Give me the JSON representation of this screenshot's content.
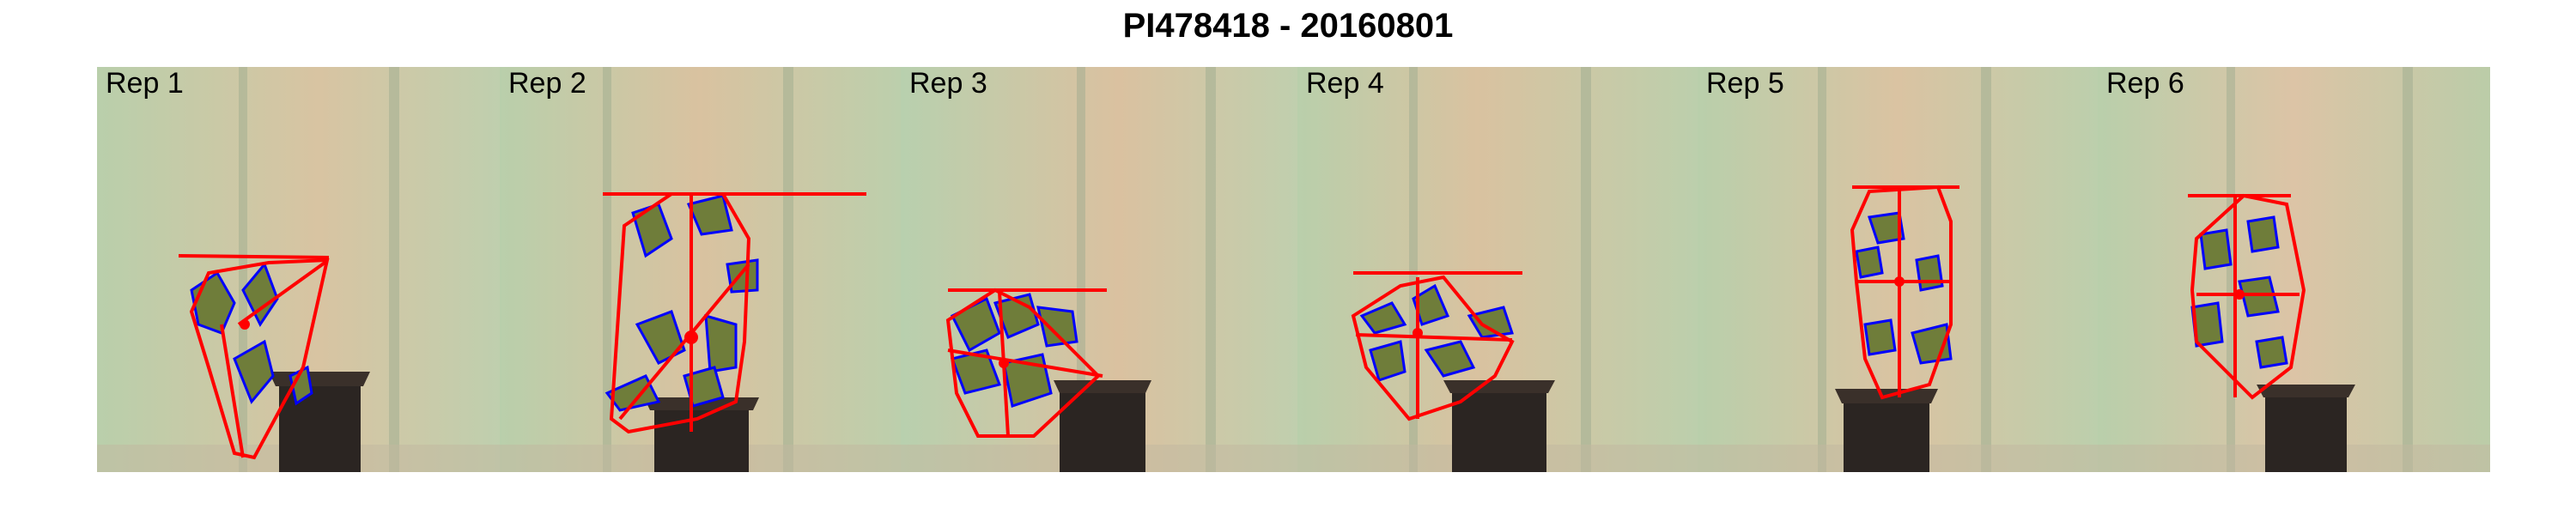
{
  "figure": {
    "title": "PI478418 - 20160801",
    "panels": [
      {
        "label": "Rep 1"
      },
      {
        "label": "Rep 2"
      },
      {
        "label": "Rep 3"
      },
      {
        "label": "Rep 4"
      },
      {
        "label": "Rep 5"
      },
      {
        "label": "Rep 6"
      }
    ]
  },
  "colors": {
    "hull_outline": "#ff0000",
    "leaf_contour": "#0000ff",
    "leaf": "#6f7d3a",
    "pot": "#2b2522",
    "background_center": "#d9c2a0",
    "background_edge": "#b8cfaa"
  }
}
